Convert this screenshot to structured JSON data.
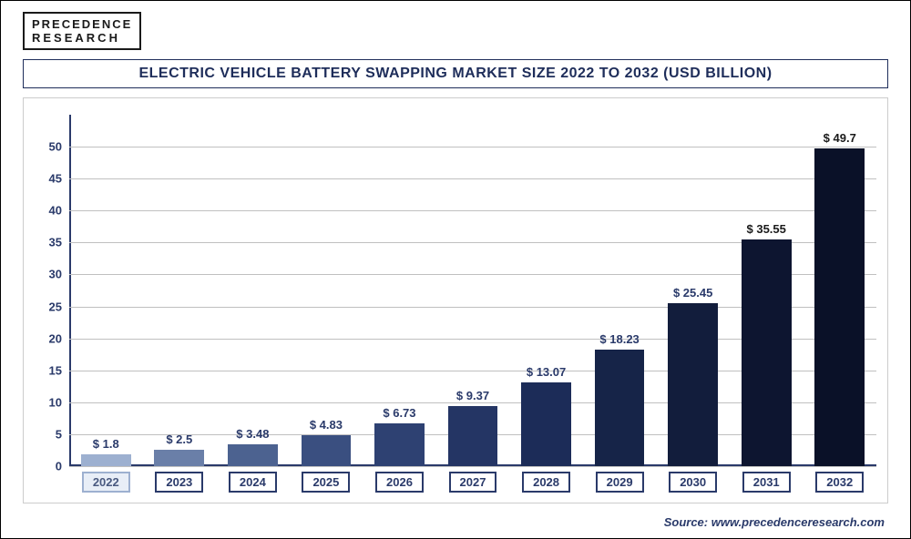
{
  "logo": {
    "line1": "PRECEDENCE",
    "line2": "RESEARCH"
  },
  "title": "ELECTRIC VEHICLE BATTERY SWAPPING MARKET SIZE 2022 TO 2032 (USD BILLION)",
  "source": "Source: www.precedenceresearch.com",
  "chart": {
    "type": "bar",
    "ylim": [
      0,
      55
    ],
    "ytick_step": 5,
    "yticks": [
      0,
      5,
      10,
      15,
      20,
      25,
      30,
      35,
      40,
      45,
      50
    ],
    "grid_color": "#c0c0c0",
    "axis_color": "#2a3a6a",
    "label_color": "#2a3a6a",
    "tick_fontsize": 13,
    "value_fontsize": 13,
    "background": "#ffffff",
    "categories": [
      "2022",
      "2023",
      "2024",
      "2025",
      "2026",
      "2027",
      "2028",
      "2029",
      "2030",
      "2031",
      "2032"
    ],
    "values": [
      1.8,
      2.5,
      3.48,
      4.83,
      6.73,
      9.37,
      13.07,
      18.23,
      25.45,
      35.55,
      49.7
    ],
    "value_labels": [
      "$ 1.8",
      "$ 2.5",
      "$ 3.48",
      "$ 4.83",
      "$ 6.73",
      "$ 9.37",
      "$ 13.07",
      "$ 18.23",
      "$ 25.45",
      "$ 35.55",
      "$ 49.7"
    ],
    "bar_colors": [
      "#9db0d0",
      "#6a7fa8",
      "#4c6290",
      "#3a4f80",
      "#2e4172",
      "#243564",
      "#1c2c58",
      "#162448",
      "#121d3c",
      "#0d1530",
      "#0a1128"
    ],
    "value_label_colors": [
      "#2a3a6a",
      "#2a3a6a",
      "#2a3a6a",
      "#2a3a6a",
      "#2a3a6a",
      "#2a3a6a",
      "#2a3a6a",
      "#2a3a6a",
      "#2a3a6a",
      "#1a1a1a",
      "#1a1a1a"
    ],
    "x_label_first": {
      "border_color": "#9db0d0",
      "background": "#e8eef7",
      "text_color": "#4a5a80"
    },
    "x_label_rest": {
      "border_color": "#2a3a6a",
      "background": "#ffffff",
      "text_color": "#2a3a6a"
    }
  }
}
